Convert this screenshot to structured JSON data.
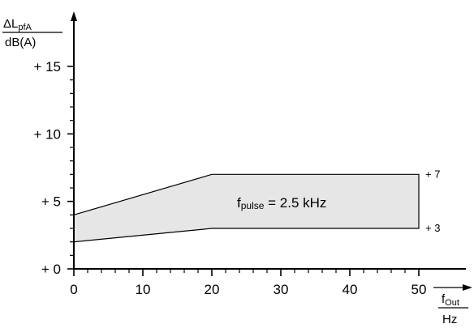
{
  "chart_data": {
    "type": "area",
    "ylabel": {
      "symbol": "ΔL",
      "subscript": "pfA",
      "unit": "dB(A)"
    },
    "xlabel": {
      "symbol": "f",
      "subscript": "Out",
      "unit": "Hz"
    },
    "x_ticks": [
      0,
      10,
      20,
      30,
      40,
      50
    ],
    "y_ticks": [
      "+ 0",
      "+ 5",
      "+ 10",
      "+ 15"
    ],
    "y_tick_values": [
      0,
      5,
      10,
      15
    ],
    "xlim": [
      0,
      50
    ],
    "ylim": [
      0,
      15
    ],
    "grid": false,
    "band": {
      "x": [
        0,
        20,
        50
      ],
      "upper": [
        4,
        7,
        7
      ],
      "lower": [
        2,
        3,
        3
      ],
      "fill": "#e6e6e6",
      "end_labels": {
        "upper": "+ 7",
        "lower": "+ 3"
      }
    },
    "annotation": {
      "symbol": "f",
      "subscript": "pulse",
      "text": " = 2.5 kHz"
    }
  }
}
